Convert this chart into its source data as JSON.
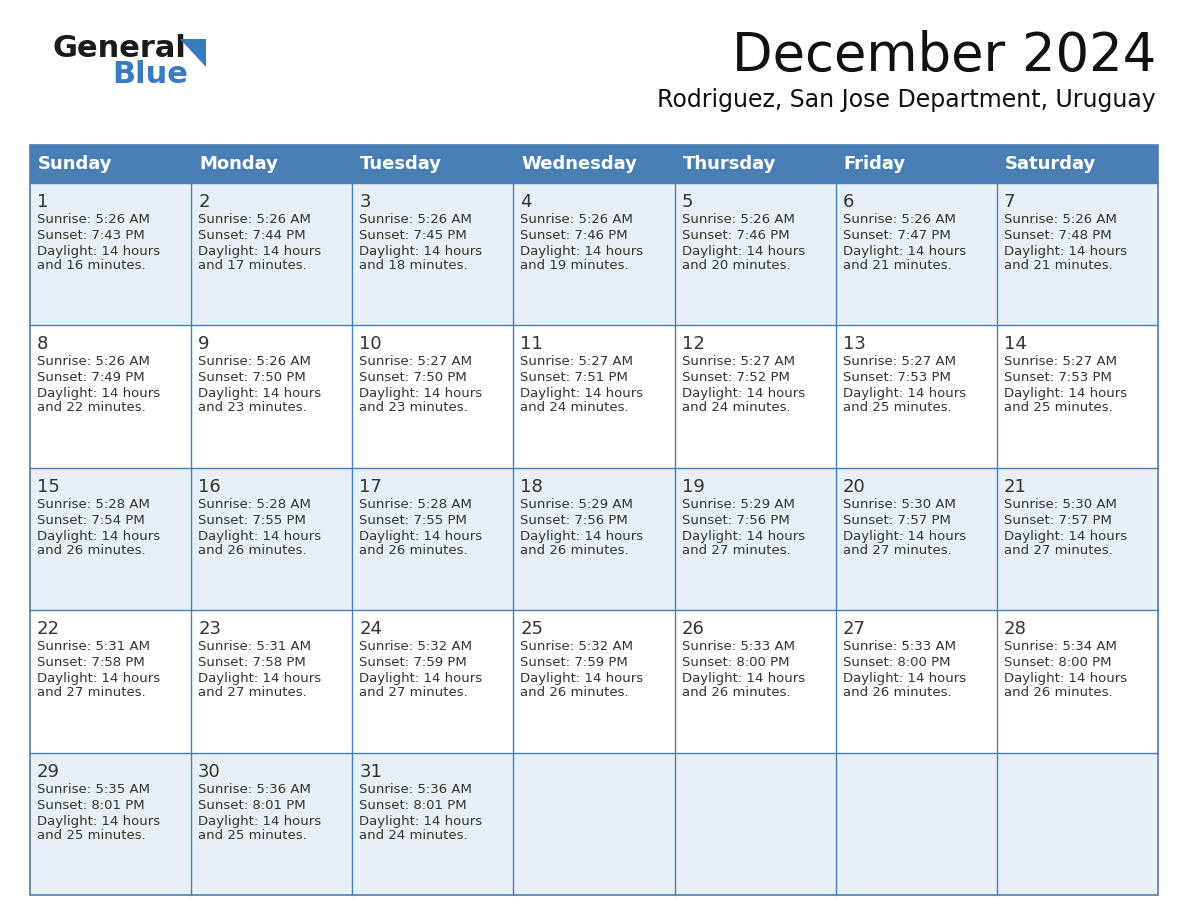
{
  "title": "December 2024",
  "subtitle": "Rodriguez, San Jose Department, Uruguay",
  "header_color": "#4a7fb5",
  "header_text_color": "#ffffff",
  "cell_bg_odd": "#e8f0f7",
  "cell_bg_even": "#ffffff",
  "border_color": "#4a7fb5",
  "text_color": "#333333",
  "day_headers": [
    "Sunday",
    "Monday",
    "Tuesday",
    "Wednesday",
    "Thursday",
    "Friday",
    "Saturday"
  ],
  "weeks": [
    [
      {
        "day": "1",
        "sunrise": "5:26 AM",
        "sunset": "7:43 PM",
        "daylight": "14 hours\nand 16 minutes."
      },
      {
        "day": "2",
        "sunrise": "5:26 AM",
        "sunset": "7:44 PM",
        "daylight": "14 hours\nand 17 minutes."
      },
      {
        "day": "3",
        "sunrise": "5:26 AM",
        "sunset": "7:45 PM",
        "daylight": "14 hours\nand 18 minutes."
      },
      {
        "day": "4",
        "sunrise": "5:26 AM",
        "sunset": "7:46 PM",
        "daylight": "14 hours\nand 19 minutes."
      },
      {
        "day": "5",
        "sunrise": "5:26 AM",
        "sunset": "7:46 PM",
        "daylight": "14 hours\nand 20 minutes."
      },
      {
        "day": "6",
        "sunrise": "5:26 AM",
        "sunset": "7:47 PM",
        "daylight": "14 hours\nand 21 minutes."
      },
      {
        "day": "7",
        "sunrise": "5:26 AM",
        "sunset": "7:48 PM",
        "daylight": "14 hours\nand 21 minutes."
      }
    ],
    [
      {
        "day": "8",
        "sunrise": "5:26 AM",
        "sunset": "7:49 PM",
        "daylight": "14 hours\nand 22 minutes."
      },
      {
        "day": "9",
        "sunrise": "5:26 AM",
        "sunset": "7:50 PM",
        "daylight": "14 hours\nand 23 minutes."
      },
      {
        "day": "10",
        "sunrise": "5:27 AM",
        "sunset": "7:50 PM",
        "daylight": "14 hours\nand 23 minutes."
      },
      {
        "day": "11",
        "sunrise": "5:27 AM",
        "sunset": "7:51 PM",
        "daylight": "14 hours\nand 24 minutes."
      },
      {
        "day": "12",
        "sunrise": "5:27 AM",
        "sunset": "7:52 PM",
        "daylight": "14 hours\nand 24 minutes."
      },
      {
        "day": "13",
        "sunrise": "5:27 AM",
        "sunset": "7:53 PM",
        "daylight": "14 hours\nand 25 minutes."
      },
      {
        "day": "14",
        "sunrise": "5:27 AM",
        "sunset": "7:53 PM",
        "daylight": "14 hours\nand 25 minutes."
      }
    ],
    [
      {
        "day": "15",
        "sunrise": "5:28 AM",
        "sunset": "7:54 PM",
        "daylight": "14 hours\nand 26 minutes."
      },
      {
        "day": "16",
        "sunrise": "5:28 AM",
        "sunset": "7:55 PM",
        "daylight": "14 hours\nand 26 minutes."
      },
      {
        "day": "17",
        "sunrise": "5:28 AM",
        "sunset": "7:55 PM",
        "daylight": "14 hours\nand 26 minutes."
      },
      {
        "day": "18",
        "sunrise": "5:29 AM",
        "sunset": "7:56 PM",
        "daylight": "14 hours\nand 26 minutes."
      },
      {
        "day": "19",
        "sunrise": "5:29 AM",
        "sunset": "7:56 PM",
        "daylight": "14 hours\nand 27 minutes."
      },
      {
        "day": "20",
        "sunrise": "5:30 AM",
        "sunset": "7:57 PM",
        "daylight": "14 hours\nand 27 minutes."
      },
      {
        "day": "21",
        "sunrise": "5:30 AM",
        "sunset": "7:57 PM",
        "daylight": "14 hours\nand 27 minutes."
      }
    ],
    [
      {
        "day": "22",
        "sunrise": "5:31 AM",
        "sunset": "7:58 PM",
        "daylight": "14 hours\nand 27 minutes."
      },
      {
        "day": "23",
        "sunrise": "5:31 AM",
        "sunset": "7:58 PM",
        "daylight": "14 hours\nand 27 minutes."
      },
      {
        "day": "24",
        "sunrise": "5:32 AM",
        "sunset": "7:59 PM",
        "daylight": "14 hours\nand 27 minutes."
      },
      {
        "day": "25",
        "sunrise": "5:32 AM",
        "sunset": "7:59 PM",
        "daylight": "14 hours\nand 26 minutes."
      },
      {
        "day": "26",
        "sunrise": "5:33 AM",
        "sunset": "8:00 PM",
        "daylight": "14 hours\nand 26 minutes."
      },
      {
        "day": "27",
        "sunrise": "5:33 AM",
        "sunset": "8:00 PM",
        "daylight": "14 hours\nand 26 minutes."
      },
      {
        "day": "28",
        "sunrise": "5:34 AM",
        "sunset": "8:00 PM",
        "daylight": "14 hours\nand 26 minutes."
      }
    ],
    [
      {
        "day": "29",
        "sunrise": "5:35 AM",
        "sunset": "8:01 PM",
        "daylight": "14 hours\nand 25 minutes."
      },
      {
        "day": "30",
        "sunrise": "5:36 AM",
        "sunset": "8:01 PM",
        "daylight": "14 hours\nand 25 minutes."
      },
      {
        "day": "31",
        "sunrise": "5:36 AM",
        "sunset": "8:01 PM",
        "daylight": "14 hours\nand 24 minutes."
      },
      null,
      null,
      null,
      null
    ]
  ],
  "logo_general_color": "#1a1a1a",
  "logo_blue_color": "#3a7abf",
  "logo_triangle_color": "#3a7abf",
  "title_fontsize": 38,
  "subtitle_fontsize": 17,
  "header_fontsize": 13,
  "day_num_fontsize": 13,
  "cell_text_fontsize": 9.5
}
